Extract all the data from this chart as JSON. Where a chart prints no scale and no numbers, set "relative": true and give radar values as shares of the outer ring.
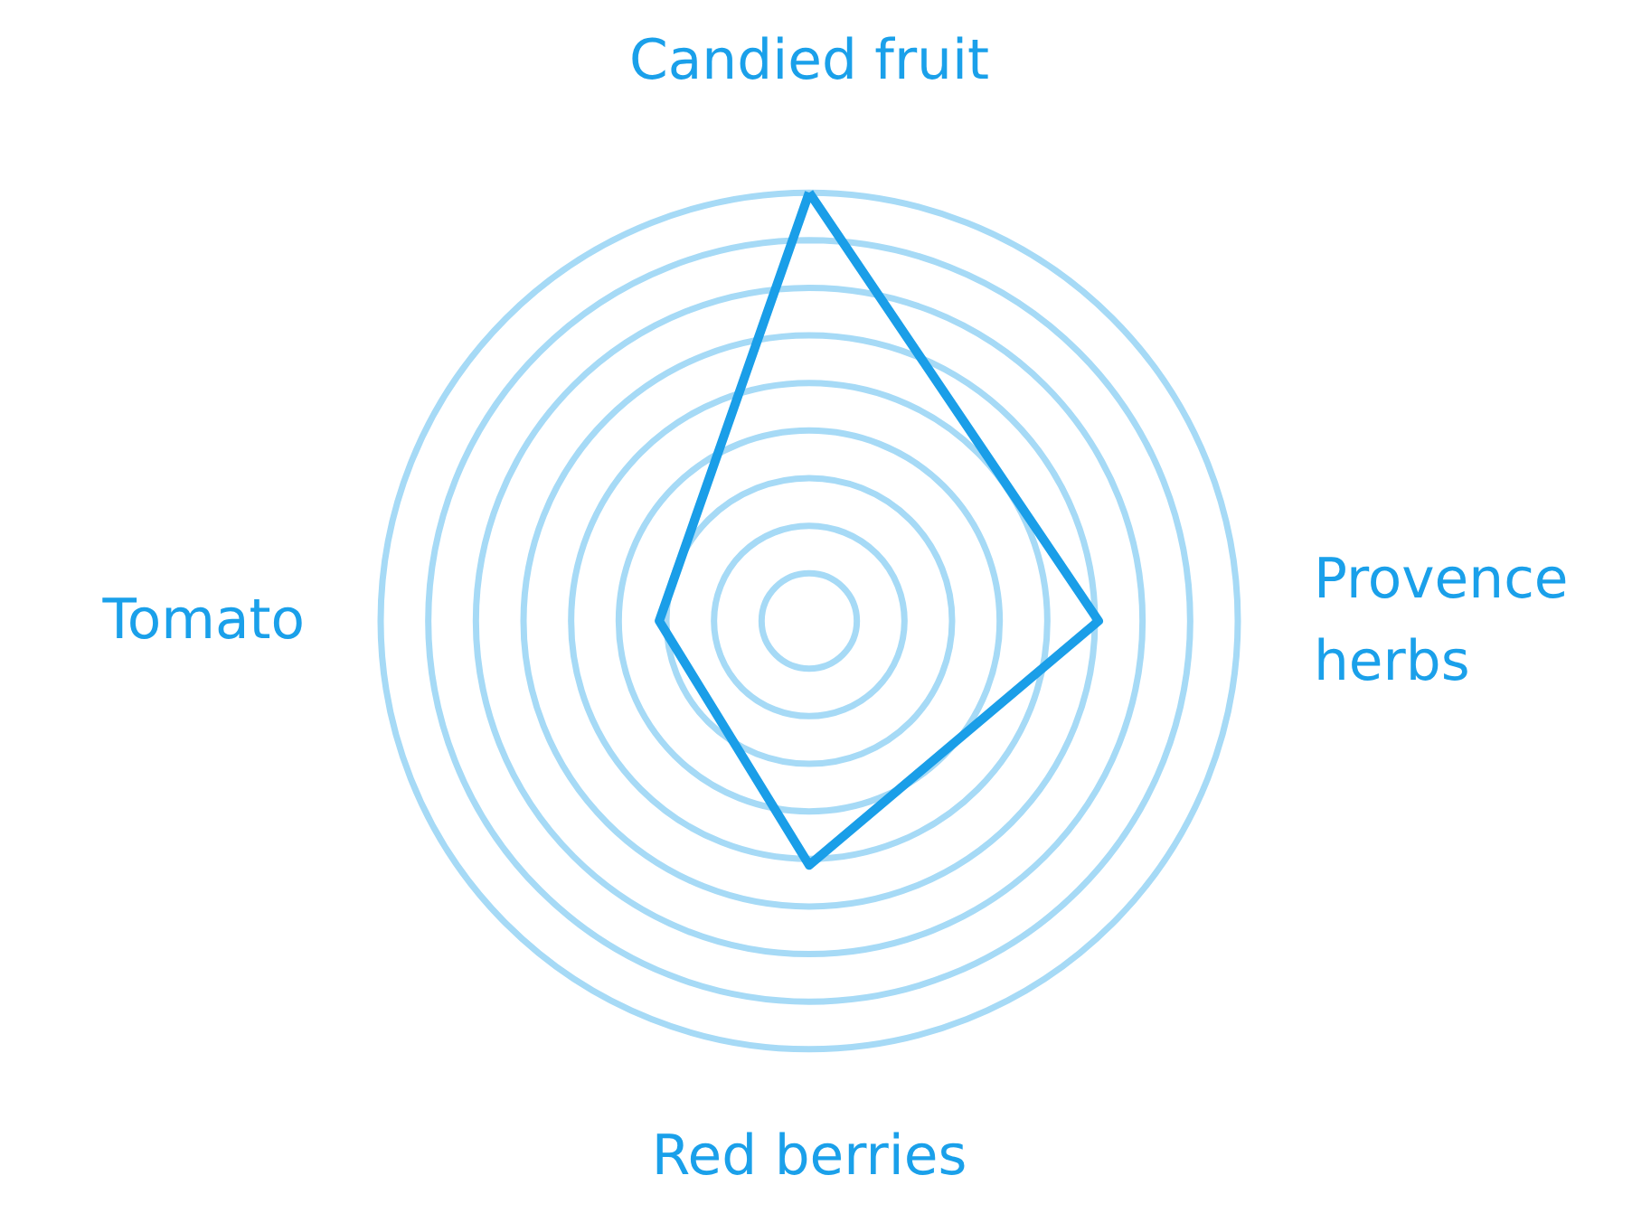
{
  "chart_data": {
    "type": "radar",
    "categories": [
      "Candied fruit",
      "Provence herbs",
      "Red berries",
      "Tomato"
    ],
    "relative": true,
    "grid": true,
    "series": [
      {
        "color": "#1a9ee8",
        "values": [
          1.0,
          0.675,
          0.57,
          0.35
        ]
      }
    ]
  }
}
